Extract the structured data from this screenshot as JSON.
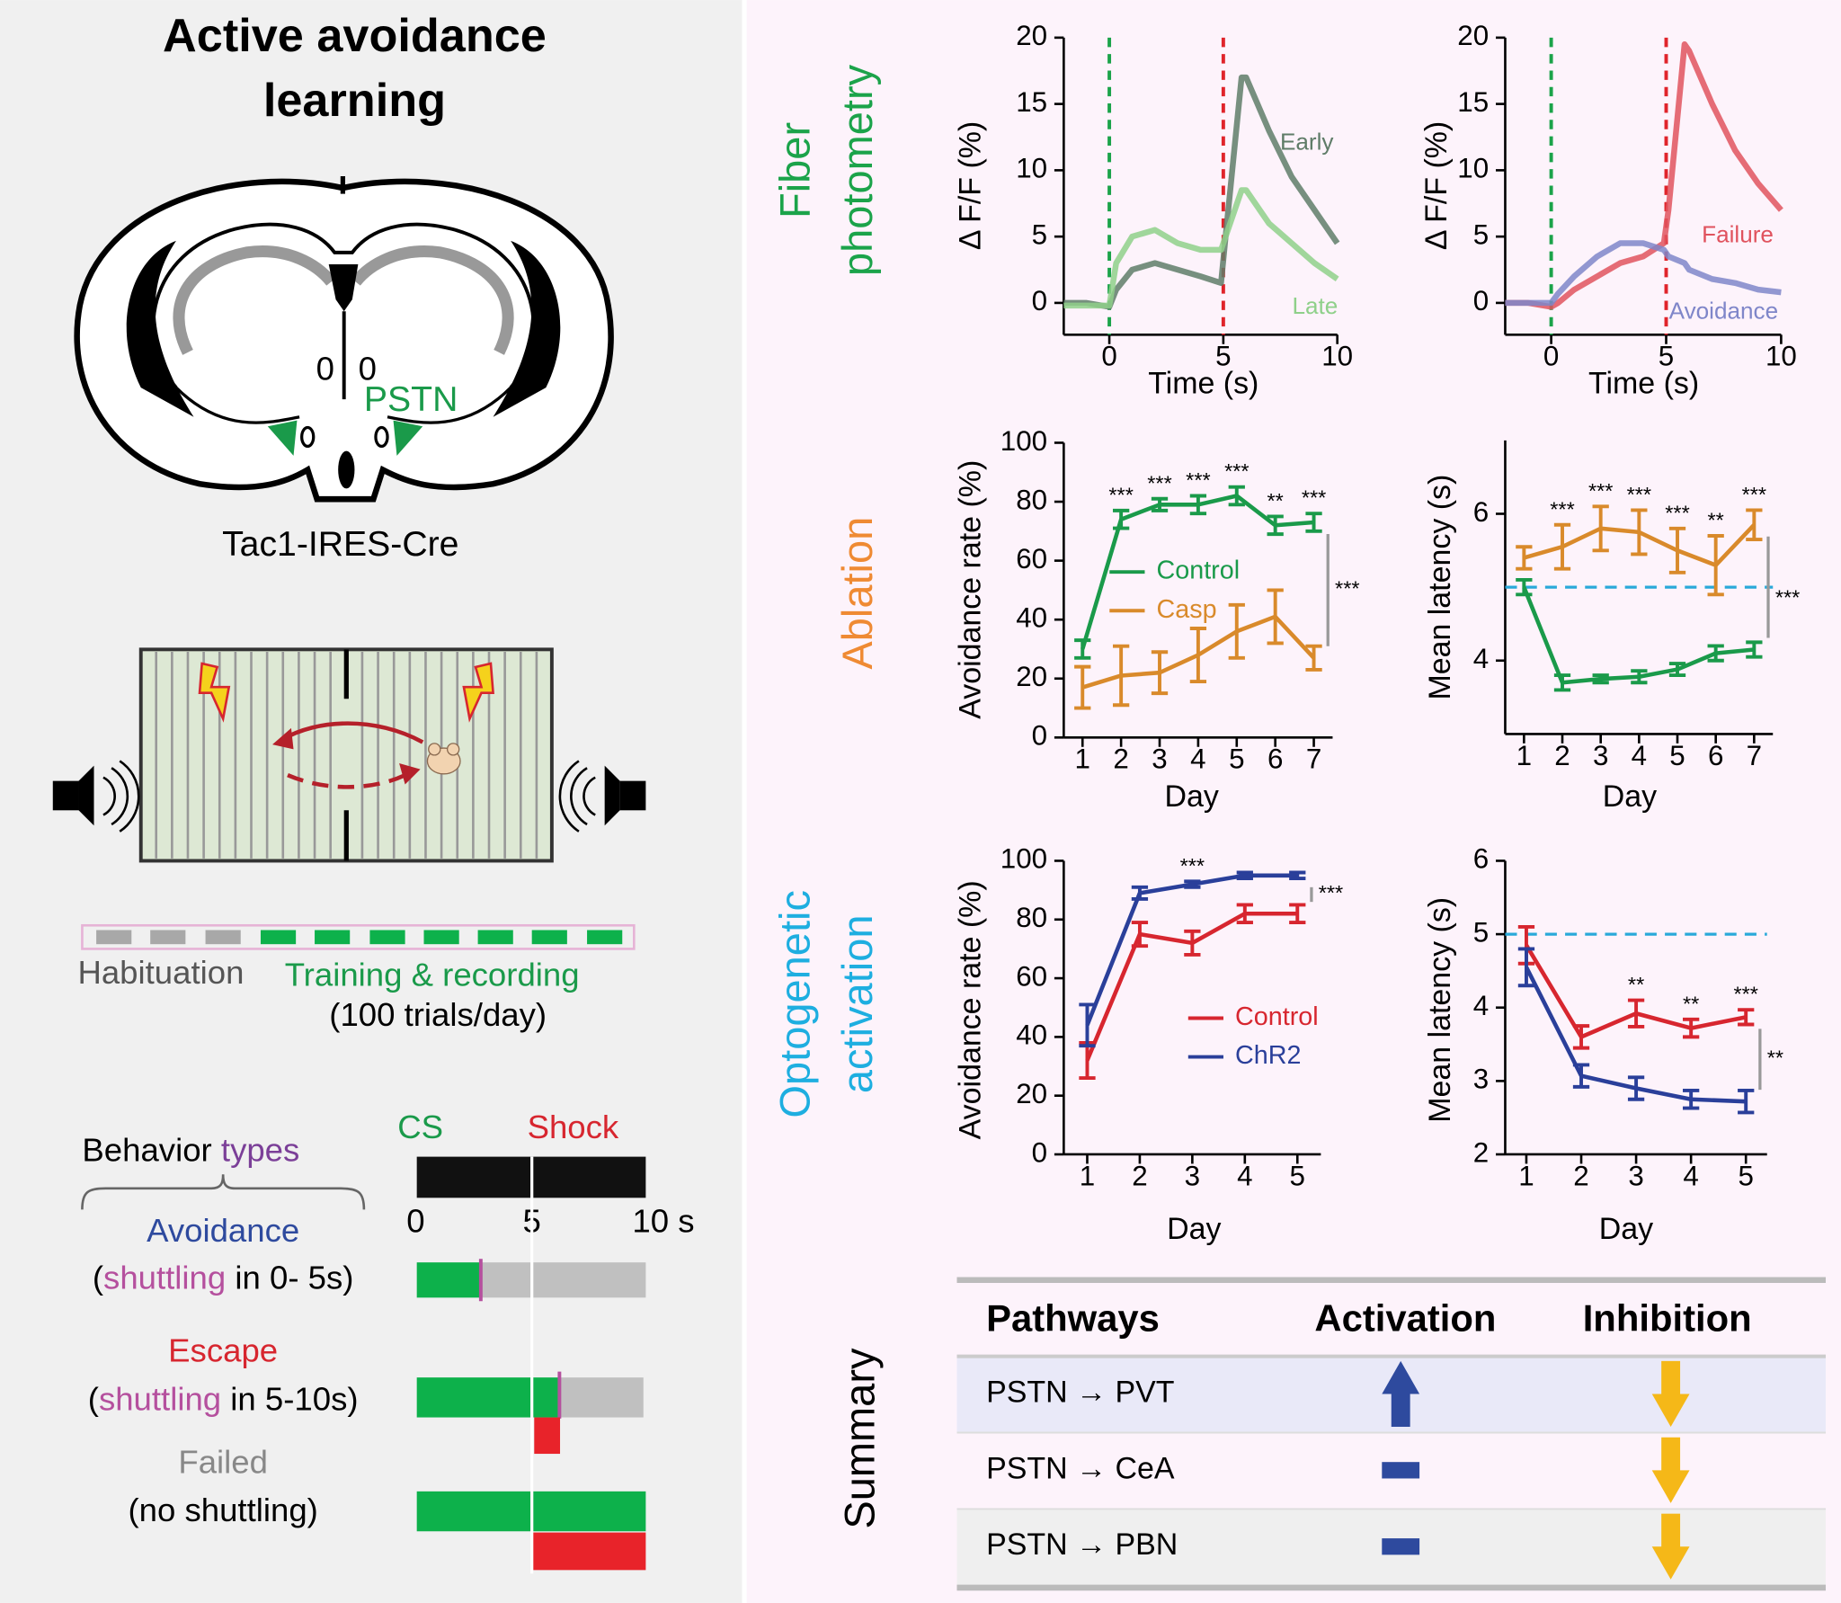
{
  "figure_title": [
    "Active avoidance",
    "learning"
  ],
  "brain": {
    "labels": [
      "0",
      "0"
    ],
    "region": "PSTN",
    "strain": "Tac1-IRES-Cre"
  },
  "protocol": {
    "habituation": "Habituation",
    "training": "Training & recording",
    "trials": "(100 trials/day)"
  },
  "behavior": {
    "title": [
      "Behavior",
      "types"
    ],
    "cs": "CS",
    "shock": "Shock",
    "time_ticks": [
      "0",
      "5",
      "10 s"
    ],
    "types": [
      {
        "name": "Avoidance",
        "open": "(",
        "shuttling": "shuttling",
        "rest": " in 0- 5s)"
      },
      {
        "name": "Escape",
        "open": "(",
        "shuttling": "shuttling",
        "rest": " in 5-10s)"
      },
      {
        "name": "Failed",
        "open": "(no shuttling)"
      }
    ]
  },
  "panel_labels": {
    "photometry": [
      "Fiber",
      "photometry"
    ],
    "ablation": "Ablation",
    "optogenetic": [
      "Optogenetic",
      "activation"
    ],
    "summary": "Summary"
  },
  "chart_data": [
    {
      "type": "line",
      "x_label": "Time (s)",
      "y_label": "Δ F/F (%)",
      "x": [
        -2,
        -1,
        0,
        0.3,
        1,
        2,
        3,
        4,
        4.9,
        5.1,
        5.8,
        6,
        7,
        8,
        9,
        10
      ],
      "series": [
        {
          "name": "Early",
          "color": "#5f7c68",
          "values": [
            0,
            0,
            -0.3,
            1,
            2.5,
            3,
            2.5,
            2,
            1.5,
            5,
            17,
            17,
            13,
            9.5,
            7,
            4.5
          ]
        },
        {
          "name": "Late",
          "color": "#8fd08a",
          "values": [
            -0.2,
            -0.2,
            -0.2,
            3,
            5,
            5.5,
            4.5,
            4,
            4,
            5,
            8.5,
            8.5,
            6,
            4.5,
            3,
            1.8
          ]
        }
      ],
      "xlim": [
        -2,
        10
      ],
      "xticks": [
        0,
        5,
        10
      ],
      "ylim": [
        -2.4,
        20
      ],
      "yticks": [
        0,
        5,
        10,
        15,
        20
      ],
      "vlines": [
        {
          "x": 0,
          "color": "#1ba34a"
        },
        {
          "x": 5,
          "color": "#e0242b"
        }
      ]
    },
    {
      "type": "line",
      "x_label": "Time (s)",
      "y_label": "Δ F/F (%)",
      "x": [
        -2,
        -1,
        0,
        0.3,
        1,
        2,
        3,
        4,
        4.9,
        5.1,
        5.8,
        6,
        7,
        8,
        9,
        10
      ],
      "series": [
        {
          "name": "Failure",
          "color": "#e0535e",
          "values": [
            0,
            0,
            -0.3,
            0,
            1,
            2,
            3,
            3.5,
            4.5,
            7,
            19.5,
            19,
            15,
            11.5,
            9,
            7
          ]
        },
        {
          "name": "Avoidance",
          "color": "#7f86c9",
          "values": [
            0,
            0,
            0,
            0.7,
            2,
            3.5,
            4.5,
            4.5,
            4,
            3.5,
            3,
            2.5,
            1.8,
            1.5,
            1,
            0.8
          ]
        }
      ],
      "xlim": [
        -2,
        10
      ],
      "xticks": [
        0,
        5,
        10
      ],
      "ylim": [
        -2.4,
        20
      ],
      "yticks": [
        0,
        5,
        10,
        15,
        20
      ],
      "vlines": [
        {
          "x": 0,
          "color": "#1ba34a"
        },
        {
          "x": 5,
          "color": "#e0242b"
        }
      ]
    },
    {
      "type": "line",
      "x_label": "Day",
      "y_label": "Avoidance rate (%)",
      "categories": [
        "1",
        "2",
        "3",
        "4",
        "5",
        "6",
        "7"
      ],
      "series": [
        {
          "name": "Control",
          "color": "#1a9a4a",
          "values": [
            30,
            74,
            79,
            79,
            82,
            72,
            73
          ],
          "errors": [
            3,
            3,
            2,
            3,
            3,
            3,
            3
          ]
        },
        {
          "name": "Casp",
          "color": "#d98a2b",
          "values": [
            17,
            21,
            22,
            28,
            36,
            41,
            27
          ],
          "errors": [
            7,
            10,
            7,
            9,
            9,
            9,
            4
          ]
        }
      ],
      "ylim": [
        0,
        100
      ],
      "yticks": [
        0,
        20,
        40,
        60,
        80,
        100
      ],
      "legend": true,
      "significance": [
        null,
        "***",
        "***",
        "***",
        "***",
        "**",
        "***"
      ],
      "bracket_label": "***"
    },
    {
      "type": "line",
      "x_label": "Day",
      "y_label": "Mean latency (s)",
      "categories": [
        "1",
        "2",
        "3",
        "4",
        "5",
        "6",
        "7"
      ],
      "series": [
        {
          "name": "Control",
          "color": "#1a9a4a",
          "values": [
            5.0,
            3.7,
            3.75,
            3.78,
            3.88,
            4.1,
            4.15
          ],
          "errors": [
            0.1,
            0.1,
            0.05,
            0.08,
            0.08,
            0.1,
            0.1
          ]
        },
        {
          "name": "Casp",
          "color": "#d98a2b",
          "values": [
            5.4,
            5.55,
            5.8,
            5.75,
            5.5,
            5.3,
            5.85
          ],
          "errors": [
            0.15,
            0.3,
            0.3,
            0.3,
            0.3,
            0.4,
            0.2
          ]
        }
      ],
      "ylim": [
        3,
        7
      ],
      "yticks": [
        4,
        6
      ],
      "legend": false,
      "reference_line": {
        "y": 5,
        "color": "#29a9d9"
      },
      "significance": [
        null,
        "***",
        "***",
        "***",
        "***",
        "**",
        "***"
      ],
      "bracket_label": "***"
    },
    {
      "type": "line",
      "x_label": "Day",
      "y_label": "Avoidance rate (%)",
      "categories": [
        "1",
        "2",
        "3",
        "4",
        "5"
      ],
      "series": [
        {
          "name": "Control",
          "color": "#d7262f",
          "values": [
            32,
            75,
            72,
            82,
            82
          ],
          "errors": [
            6,
            4,
            4,
            3,
            3
          ]
        },
        {
          "name": "ChR2",
          "color": "#2a3f9a",
          "values": [
            44,
            89,
            92,
            95,
            95
          ],
          "errors": [
            7,
            2,
            1,
            1,
            1
          ]
        }
      ],
      "ylim": [
        0,
        100
      ],
      "yticks": [
        0,
        20,
        40,
        60,
        80,
        100
      ],
      "legend": true,
      "significance": [
        null,
        null,
        "***",
        null,
        null
      ],
      "bracket_label": "***"
    },
    {
      "type": "line",
      "x_label": "Day",
      "y_label": "Mean latency (s)",
      "categories": [
        "1",
        "2",
        "3",
        "4",
        "5"
      ],
      "series": [
        {
          "name": "Control",
          "color": "#d7262f",
          "values": [
            4.85,
            3.6,
            3.92,
            3.72,
            3.87
          ],
          "errors": [
            0.25,
            0.15,
            0.18,
            0.12,
            0.1
          ]
        },
        {
          "name": "ChR2",
          "color": "#2a3f9a",
          "values": [
            4.55,
            3.07,
            2.9,
            2.75,
            2.72
          ],
          "errors": [
            0.25,
            0.15,
            0.15,
            0.12,
            0.15
          ]
        }
      ],
      "ylim": [
        2,
        6
      ],
      "yticks": [
        2,
        3,
        4,
        5,
        6
      ],
      "legend": false,
      "reference_line": {
        "y": 5,
        "color": "#29a9d9"
      },
      "significance": [
        null,
        null,
        "**",
        "**",
        "***"
      ],
      "bracket_label": "**"
    }
  ],
  "summary": {
    "headers": [
      "Pathways",
      "Activation",
      "Inhibition"
    ],
    "rows": [
      {
        "pathway": "PSTN → PVT",
        "activation": "up",
        "inhibition": "down"
      },
      {
        "pathway": "PSTN → CeA",
        "activation": "none",
        "inhibition": "down"
      },
      {
        "pathway": "PSTN → PBN",
        "activation": "none",
        "inhibition": "down"
      }
    ]
  }
}
